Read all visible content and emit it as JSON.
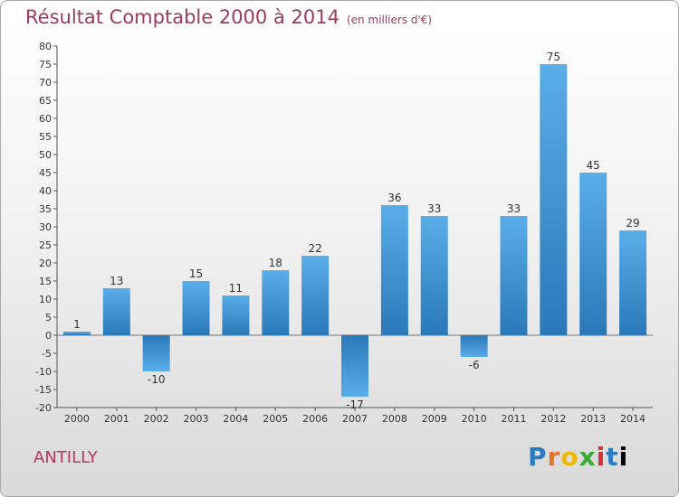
{
  "header": {
    "title": "Résultat Comptable 2000 à 2014",
    "unit": "(en milliers d'€)"
  },
  "commune": "ANTILLY",
  "logo": {
    "letters": [
      "P",
      "r",
      "o",
      "x",
      "i",
      "t",
      "i"
    ]
  },
  "colors": {
    "bar_light": "#5aaee8",
    "bar_dark": "#2a78b8",
    "title": "#9c3a5e"
  },
  "chart_data": {
    "type": "bar",
    "title": "Résultat Comptable 2000 à 2014",
    "subtitle": "(en milliers d'€)",
    "xlabel": "",
    "ylabel": "",
    "categories": [
      "2000",
      "2001",
      "2002",
      "2003",
      "2004",
      "2005",
      "2006",
      "2007",
      "2008",
      "2009",
      "2010",
      "2011",
      "2012",
      "2013",
      "2014"
    ],
    "values": [
      1,
      13,
      -10,
      15,
      11,
      18,
      22,
      -17,
      36,
      33,
      -6,
      33,
      75,
      45,
      29
    ],
    "ylim": [
      -20,
      80
    ],
    "yticks": [
      80,
      75,
      70,
      65,
      60,
      55,
      50,
      45,
      40,
      35,
      30,
      25,
      20,
      15,
      10,
      5,
      0,
      -5,
      -10,
      -15,
      -20
    ],
    "grid": false,
    "legend": "none"
  }
}
